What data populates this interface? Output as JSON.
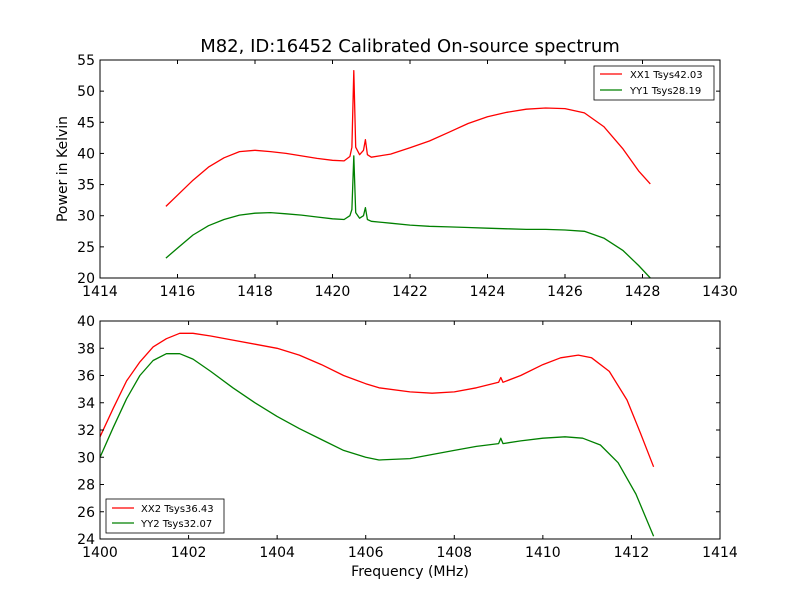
{
  "chart_data": [
    {
      "type": "line",
      "title": "M82, ID:16452 Calibrated On-source spectrum",
      "xlabel": "",
      "ylabel": "Power in Kelvin",
      "xlim": [
        1414,
        1430
      ],
      "ylim": [
        20,
        55
      ],
      "xticks": [
        "1414",
        "1416",
        "1418",
        "1420",
        "1422",
        "1424",
        "1426",
        "1428",
        "1430"
      ],
      "yticks": [
        "20",
        "25",
        "30",
        "35",
        "40",
        "45",
        "50",
        "55"
      ],
      "legend_position": "top-right",
      "series": [
        {
          "name": "XX1 Tsys42.03",
          "color": "#ff0000",
          "points": [
            [
              1415.7,
              31.5
            ],
            [
              1416.0,
              33.3
            ],
            [
              1416.4,
              35.7
            ],
            [
              1416.8,
              37.8
            ],
            [
              1417.2,
              39.3
            ],
            [
              1417.6,
              40.3
            ],
            [
              1418.0,
              40.5
            ],
            [
              1418.4,
              40.3
            ],
            [
              1418.8,
              40.0
            ],
            [
              1419.2,
              39.6
            ],
            [
              1419.6,
              39.2
            ],
            [
              1420.0,
              38.9
            ],
            [
              1420.3,
              38.8
            ],
            [
              1420.45,
              39.5
            ],
            [
              1420.5,
              41.0
            ],
            [
              1420.55,
              53.3
            ],
            [
              1420.6,
              41.0
            ],
            [
              1420.7,
              39.8
            ],
            [
              1420.8,
              40.5
            ],
            [
              1420.85,
              42.2
            ],
            [
              1420.9,
              39.8
            ],
            [
              1421.0,
              39.4
            ],
            [
              1421.5,
              39.9
            ],
            [
              1422.0,
              40.9
            ],
            [
              1422.5,
              42.0
            ],
            [
              1423.0,
              43.4
            ],
            [
              1423.5,
              44.8
            ],
            [
              1424.0,
              45.9
            ],
            [
              1424.5,
              46.6
            ],
            [
              1425.0,
              47.1
            ],
            [
              1425.5,
              47.3
            ],
            [
              1426.0,
              47.2
            ],
            [
              1426.5,
              46.5
            ],
            [
              1427.0,
              44.3
            ],
            [
              1427.5,
              40.7
            ],
            [
              1427.9,
              37.2
            ],
            [
              1428.2,
              35.1
            ]
          ]
        },
        {
          "name": "YY1 Tsys28.19",
          "color": "#008000",
          "points": [
            [
              1415.7,
              23.2
            ],
            [
              1416.0,
              24.8
            ],
            [
              1416.4,
              26.9
            ],
            [
              1416.8,
              28.4
            ],
            [
              1417.2,
              29.4
            ],
            [
              1417.6,
              30.1
            ],
            [
              1418.0,
              30.4
            ],
            [
              1418.4,
              30.5
            ],
            [
              1418.8,
              30.3
            ],
            [
              1419.2,
              30.1
            ],
            [
              1419.6,
              29.8
            ],
            [
              1420.0,
              29.5
            ],
            [
              1420.3,
              29.4
            ],
            [
              1420.45,
              30.0
            ],
            [
              1420.5,
              31.0
            ],
            [
              1420.55,
              39.6
            ],
            [
              1420.6,
              30.5
            ],
            [
              1420.7,
              29.6
            ],
            [
              1420.8,
              30.0
            ],
            [
              1420.85,
              31.3
            ],
            [
              1420.9,
              29.4
            ],
            [
              1421.0,
              29.1
            ],
            [
              1421.5,
              28.8
            ],
            [
              1422.0,
              28.5
            ],
            [
              1422.5,
              28.3
            ],
            [
              1423.0,
              28.2
            ],
            [
              1423.5,
              28.1
            ],
            [
              1424.0,
              28.0
            ],
            [
              1424.5,
              27.9
            ],
            [
              1425.0,
              27.8
            ],
            [
              1425.5,
              27.8
            ],
            [
              1426.0,
              27.7
            ],
            [
              1426.5,
              27.5
            ],
            [
              1427.0,
              26.4
            ],
            [
              1427.5,
              24.4
            ],
            [
              1427.9,
              22.0
            ],
            [
              1428.2,
              20.0
            ]
          ]
        }
      ]
    },
    {
      "type": "line",
      "title": "",
      "xlabel": "Frequency (MHz)",
      "ylabel": "",
      "xlim": [
        1400,
        1414
      ],
      "ylim": [
        24,
        40
      ],
      "xticks": [
        "1400",
        "1402",
        "1404",
        "1406",
        "1408",
        "1410",
        "1412",
        "1414"
      ],
      "yticks": [
        "24",
        "26",
        "28",
        "30",
        "32",
        "34",
        "36",
        "38",
        "40"
      ],
      "legend_position": "bottom-left",
      "series": [
        {
          "name": "XX2 Tsys36.43",
          "color": "#ff0000",
          "points": [
            [
              1400.0,
              31.5
            ],
            [
              1400.3,
              33.6
            ],
            [
              1400.6,
              35.6
            ],
            [
              1400.9,
              37.0
            ],
            [
              1401.2,
              38.1
            ],
            [
              1401.5,
              38.7
            ],
            [
              1401.8,
              39.1
            ],
            [
              1402.1,
              39.1
            ],
            [
              1402.5,
              38.9
            ],
            [
              1403.0,
              38.6
            ],
            [
              1403.5,
              38.3
            ],
            [
              1404.0,
              38.0
            ],
            [
              1404.5,
              37.5
            ],
            [
              1405.0,
              36.8
            ],
            [
              1405.5,
              36.0
            ],
            [
              1406.0,
              35.4
            ],
            [
              1406.3,
              35.1
            ],
            [
              1407.0,
              34.8
            ],
            [
              1407.5,
              34.7
            ],
            [
              1408.0,
              34.8
            ],
            [
              1408.5,
              35.1
            ],
            [
              1409.0,
              35.5
            ],
            [
              1409.05,
              35.85
            ],
            [
              1409.1,
              35.5
            ],
            [
              1409.5,
              36.0
            ],
            [
              1410.0,
              36.8
            ],
            [
              1410.4,
              37.3
            ],
            [
              1410.8,
              37.5
            ],
            [
              1411.1,
              37.3
            ],
            [
              1411.5,
              36.3
            ],
            [
              1411.9,
              34.2
            ],
            [
              1412.2,
              31.8
            ],
            [
              1412.5,
              29.3
            ]
          ]
        },
        {
          "name": "YY2 Tsys32.07",
          "color": "#008000",
          "points": [
            [
              1400.0,
              30.0
            ],
            [
              1400.3,
              32.2
            ],
            [
              1400.6,
              34.3
            ],
            [
              1400.9,
              36.0
            ],
            [
              1401.2,
              37.1
            ],
            [
              1401.5,
              37.6
            ],
            [
              1401.8,
              37.6
            ],
            [
              1402.1,
              37.2
            ],
            [
              1402.5,
              36.3
            ],
            [
              1403.0,
              35.1
            ],
            [
              1403.5,
              34.0
            ],
            [
              1404.0,
              33.0
            ],
            [
              1404.5,
              32.1
            ],
            [
              1405.0,
              31.3
            ],
            [
              1405.5,
              30.5
            ],
            [
              1406.0,
              30.0
            ],
            [
              1406.3,
              29.8
            ],
            [
              1407.0,
              29.9
            ],
            [
              1407.5,
              30.2
            ],
            [
              1408.0,
              30.5
            ],
            [
              1408.5,
              30.8
            ],
            [
              1409.0,
              31.0
            ],
            [
              1409.05,
              31.4
            ],
            [
              1409.1,
              31.0
            ],
            [
              1409.5,
              31.2
            ],
            [
              1410.0,
              31.4
            ],
            [
              1410.5,
              31.5
            ],
            [
              1410.9,
              31.4
            ],
            [
              1411.3,
              30.9
            ],
            [
              1411.7,
              29.6
            ],
            [
              1412.1,
              27.3
            ],
            [
              1412.5,
              24.2
            ]
          ]
        }
      ]
    }
  ]
}
